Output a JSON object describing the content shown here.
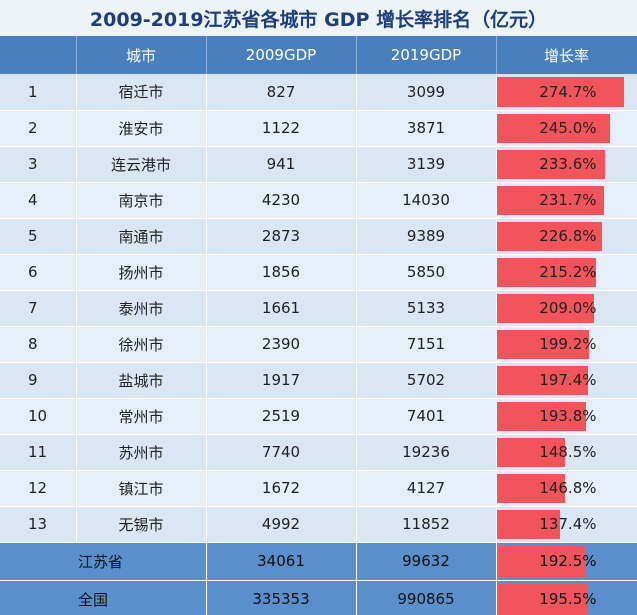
{
  "chart_data": {
    "type": "table",
    "title": "2009-2019江苏省各城市 GDP 增长率排名（亿元）",
    "columns": [
      "城市",
      "2009GDP",
      "2019GDP",
      "增长率"
    ],
    "rows": [
      {
        "rank": "1",
        "city": "宿迁市",
        "gdp2009": "827",
        "gdp2019": "3099",
        "rate": "274.7%",
        "rate_value": 274.7
      },
      {
        "rank": "2",
        "city": "淮安市",
        "gdp2009": "1122",
        "gdp2019": "3871",
        "rate": "245.0%",
        "rate_value": 245.0
      },
      {
        "rank": "3",
        "city": "连云港市",
        "gdp2009": "941",
        "gdp2019": "3139",
        "rate": "233.6%",
        "rate_value": 233.6
      },
      {
        "rank": "4",
        "city": "南京市",
        "gdp2009": "4230",
        "gdp2019": "14030",
        "rate": "231.7%",
        "rate_value": 231.7
      },
      {
        "rank": "5",
        "city": "南通市",
        "gdp2009": "2873",
        "gdp2019": "9389",
        "rate": "226.8%",
        "rate_value": 226.8
      },
      {
        "rank": "6",
        "city": "扬州市",
        "gdp2009": "1856",
        "gdp2019": "5850",
        "rate": "215.2%",
        "rate_value": 215.2
      },
      {
        "rank": "7",
        "city": "泰州市",
        "gdp2009": "1661",
        "gdp2019": "5133",
        "rate": "209.0%",
        "rate_value": 209.0
      },
      {
        "rank": "8",
        "city": "徐州市",
        "gdp2009": "2390",
        "gdp2019": "7151",
        "rate": "199.2%",
        "rate_value": 199.2
      },
      {
        "rank": "9",
        "city": "盐城市",
        "gdp2009": "1917",
        "gdp2019": "5702",
        "rate": "197.4%",
        "rate_value": 197.4
      },
      {
        "rank": "10",
        "city": "常州市",
        "gdp2009": "2519",
        "gdp2019": "7401",
        "rate": "193.8%",
        "rate_value": 193.8
      },
      {
        "rank": "11",
        "city": "苏州市",
        "gdp2009": "7740",
        "gdp2019": "19236",
        "rate": "148.5%",
        "rate_value": 148.5
      },
      {
        "rank": "12",
        "city": "镇江市",
        "gdp2009": "1672",
        "gdp2019": "4127",
        "rate": "146.8%",
        "rate_value": 146.8
      },
      {
        "rank": "13",
        "city": "无锡市",
        "gdp2009": "4992",
        "gdp2019": "11852",
        "rate": "137.4%",
        "rate_value": 137.4
      }
    ],
    "summary_rows": [
      {
        "label": "江苏省",
        "gdp2009": "34061",
        "gdp2019": "99632",
        "rate": "192.5%",
        "rate_value": 192.5
      },
      {
        "label": "全国",
        "gdp2009": "335353",
        "gdp2019": "990865",
        "rate": "195.5%",
        "rate_value": 195.5
      }
    ],
    "bar_max": 280,
    "bar_color": "#f2545b"
  }
}
